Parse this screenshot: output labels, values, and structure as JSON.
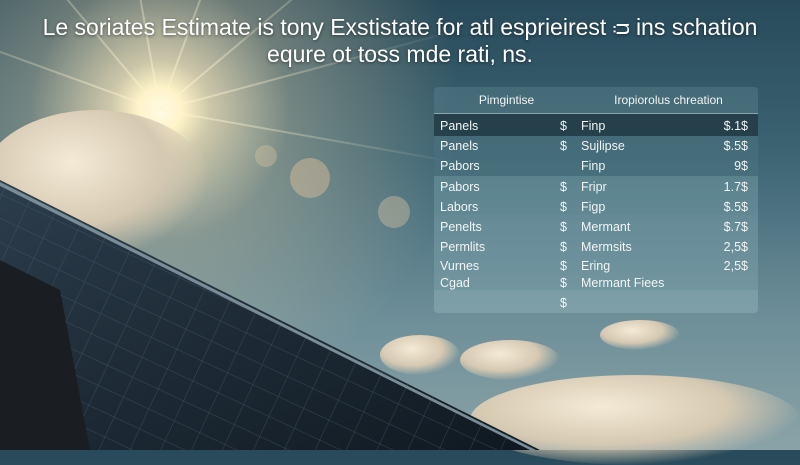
{
  "title": {
    "line1": "Le soriates Estimate is tony Exstistate for atl esprieirest ᴞ ins schation",
    "line2": "equre ot toss mde rati, ns."
  },
  "table": {
    "headers": [
      "Pimgintise",
      "Iropiorolus chreation"
    ],
    "rows": [
      {
        "item": "Panels",
        "currency": "$",
        "detail": "Finp",
        "amount": "$.1$"
      },
      {
        "item": "Panels",
        "currency": "$",
        "detail": "Sujlipse",
        "amount": "$.5$"
      },
      {
        "item": "Pabors",
        "currency": "",
        "detail": "Finp",
        "amount": "9$"
      },
      {
        "item": "Pabors",
        "currency": "$",
        "detail": "Fripr",
        "amount": "1.7$"
      },
      {
        "item": "Labors",
        "currency": "$",
        "detail": "Figp",
        "amount": "$.5$"
      },
      {
        "item": "Penelts",
        "currency": "$",
        "detail": "Mermant",
        "amount": "$.7$"
      },
      {
        "item": "Permlits",
        "currency": "$",
        "detail": "Mermsits",
        "amount": "2,5$"
      },
      {
        "item": "Vurnes",
        "currency": "$",
        "detail": "Ering",
        "amount": "2,5$"
      },
      {
        "item": "Cgad",
        "currency": "$",
        "detail": "Mermant Fiees",
        "amount": ""
      },
      {
        "item": "",
        "currency": "$",
        "detail": "",
        "amount": ""
      }
    ]
  }
}
